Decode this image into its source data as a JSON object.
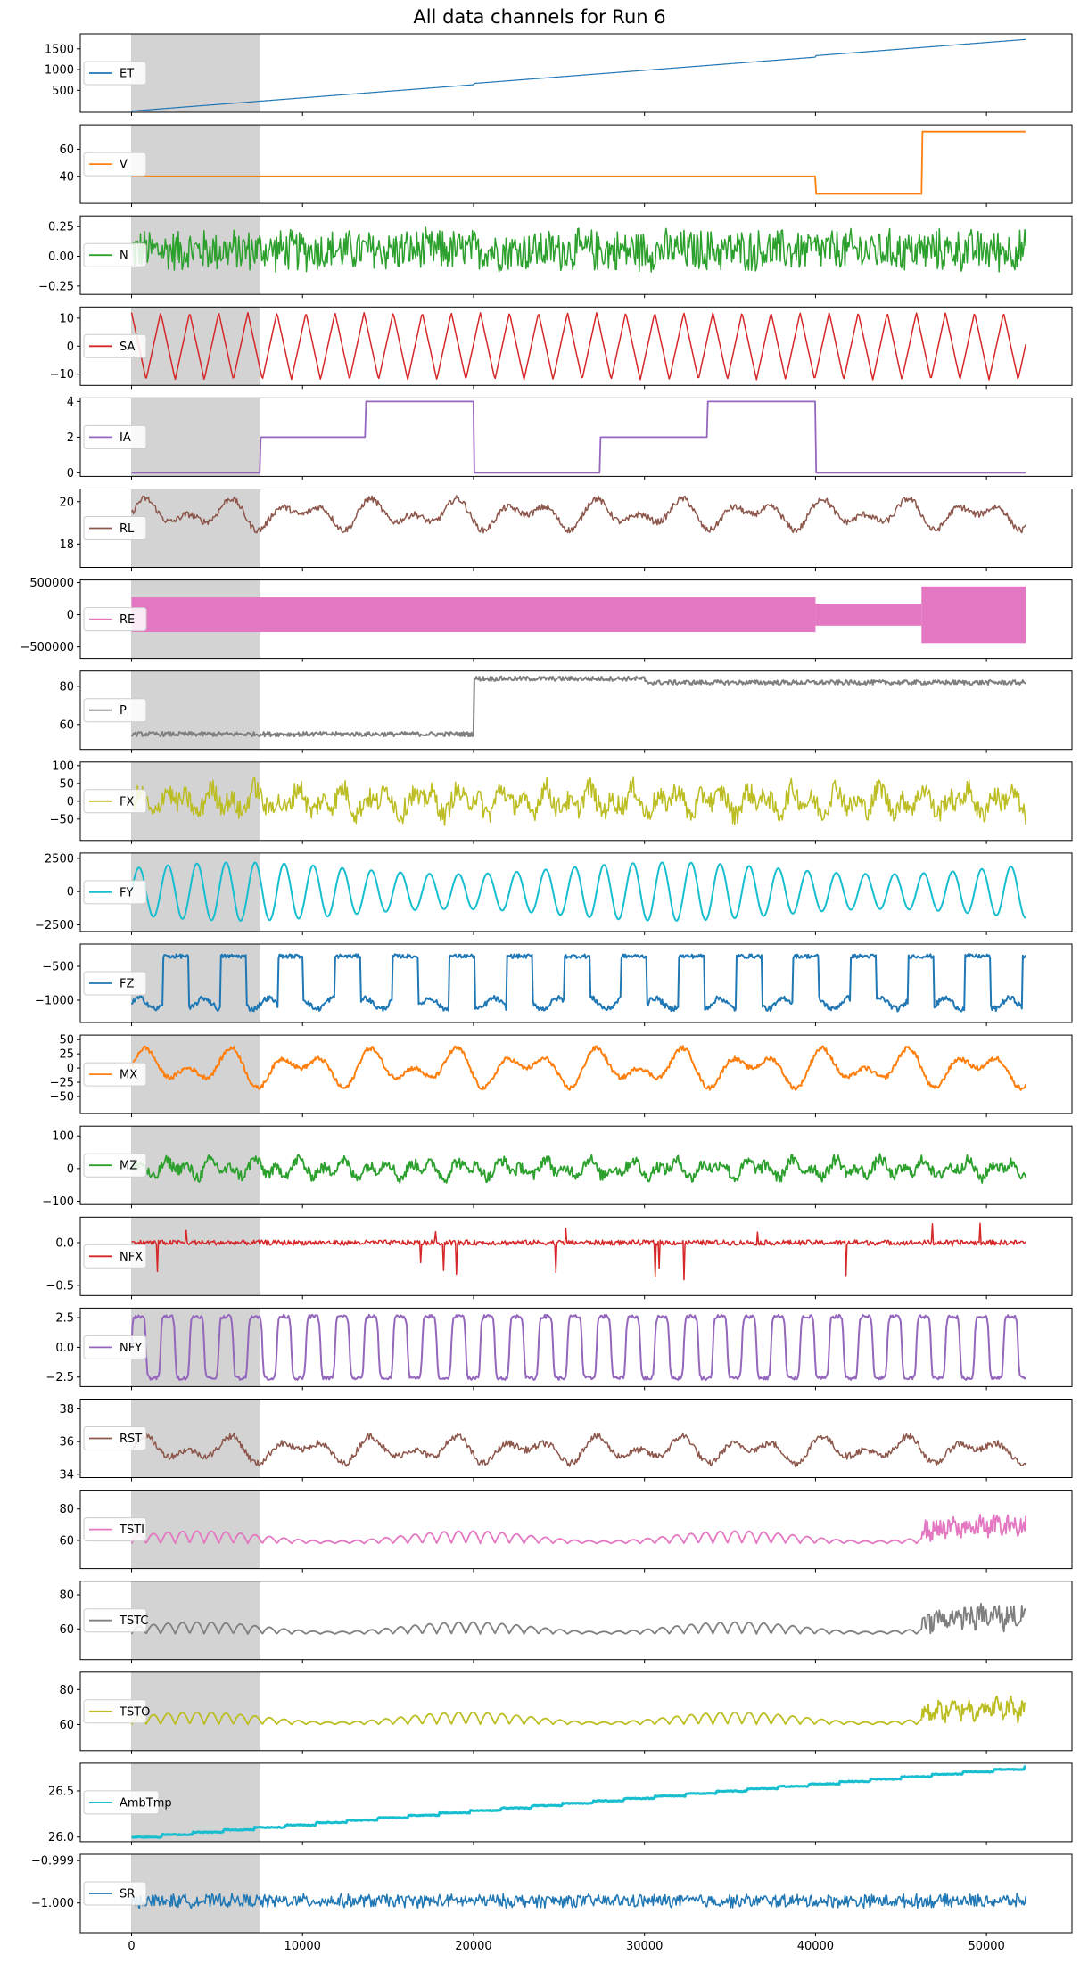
{
  "chart_data": {
    "type": "line",
    "title": "All data channels for Run 6",
    "x_domain": [
      -3000,
      55000
    ],
    "x_ticks": [
      0,
      10000,
      20000,
      30000,
      40000,
      50000
    ],
    "x_tick_labels": [
      "0",
      "10000",
      "20000",
      "30000",
      "40000",
      "50000"
    ],
    "shaded_region": [
      0,
      7500
    ],
    "x_end": 52300,
    "legend_placement": "center-left",
    "grid": false,
    "channels": [
      {
        "name": "ET",
        "color": "#1f77b4",
        "ylim": [
          -30,
          1860
        ],
        "yticks": [
          500,
          1000,
          1500
        ],
        "ytick_labels": [
          "500",
          "1000",
          "1500"
        ],
        "kind": "step_ramp",
        "lw": 1.2,
        "params": {
          "start": 0,
          "end": 1660,
          "jump_at": 20000,
          "jump": 30,
          "jump2_at": 40000,
          "jump2": 35
        }
      },
      {
        "name": "V",
        "color": "#ff7f0e",
        "ylim": [
          20,
          78
        ],
        "yticks": [
          40,
          60
        ],
        "ytick_labels": [
          "40",
          "60"
        ],
        "kind": "piecewise",
        "lw": 1.8,
        "params": {
          "segments": [
            [
              0,
              40000,
              40
            ],
            [
              40000,
              46200,
              27
            ],
            [
              46200,
              52300,
              73
            ]
          ]
        }
      },
      {
        "name": "N",
        "color": "#2ca02c",
        "ylim": [
          -0.32,
          0.34
        ],
        "yticks": [
          -0.25,
          0.0,
          0.25
        ],
        "ytick_labels": [
          "−0.25",
          "0.00",
          "0.25"
        ],
        "kind": "dense_noise",
        "lw": 1.5,
        "params": {
          "center": 0.05,
          "amp": 0.2
        }
      },
      {
        "name": "SA",
        "color": "#d62728",
        "ylim": [
          -14,
          14
        ],
        "yticks": [
          -10,
          0,
          10
        ],
        "ytick_labels": [
          "−10",
          "0",
          "10"
        ],
        "kind": "triangle",
        "lw": 1.5,
        "params": {
          "amp": 12,
          "period": 1700
        }
      },
      {
        "name": "IA",
        "color": "#9467bd",
        "ylim": [
          -0.2,
          4.2
        ],
        "yticks": [
          0,
          2,
          4
        ],
        "ytick_labels": [
          "0",
          "2",
          "4"
        ],
        "kind": "piecewise",
        "lw": 1.8,
        "params": {
          "segments": [
            [
              0,
              7500,
              0
            ],
            [
              7500,
              13700,
              2
            ],
            [
              13700,
              20000,
              4
            ],
            [
              20000,
              27400,
              0
            ],
            [
              27400,
              33700,
              2
            ],
            [
              33700,
              40000,
              4
            ],
            [
              40000,
              52300,
              0
            ]
          ]
        }
      },
      {
        "name": "RL",
        "color": "#8c564b",
        "ylim": [
          16.9,
          20.6
        ],
        "yticks": [
          18,
          20
        ],
        "ytick_labels": [
          "18",
          "20"
        ],
        "kind": "wavy",
        "lw": 1.5,
        "params": {
          "base": 19.4,
          "amp": 0.8,
          "noise": 0.15
        }
      },
      {
        "name": "RE",
        "color": "#e377c2",
        "ylim": [
          -680000,
          540000
        ],
        "yticks": [
          -500000,
          0,
          500000
        ],
        "ytick_labels": [
          "−500000",
          "0",
          "500000"
        ],
        "kind": "envelope",
        "lw": 1,
        "params": {
          "segments": [
            [
              0,
              40000,
              270000
            ],
            [
              40000,
              46200,
              170000
            ],
            [
              46200,
              52300,
              440000
            ]
          ]
        }
      },
      {
        "name": "P",
        "color": "#7f7f7f",
        "ylim": [
          47,
          88
        ],
        "yticks": [
          60,
          80
        ],
        "ytick_labels": [
          "60",
          "80"
        ],
        "kind": "piecewise_noise",
        "lw": 2,
        "params": {
          "segments": [
            [
              0,
              20000,
              55
            ],
            [
              20000,
              30000,
              84
            ],
            [
              30000,
              52300,
              82
            ]
          ],
          "noise": 1.2
        }
      },
      {
        "name": "FX",
        "color": "#bcbd22",
        "ylim": [
          -110,
          110
        ],
        "yticks": [
          -50,
          0,
          50,
          100
        ],
        "ytick_labels": [
          "−50",
          "0",
          "50",
          "100"
        ],
        "kind": "noisy_osc",
        "lw": 1.5,
        "params": {
          "amp": 40,
          "noise": 30
        }
      },
      {
        "name": "FY",
        "color": "#17becf",
        "ylim": [
          -3000,
          2900
        ],
        "yticks": [
          -2500,
          0,
          2500
        ],
        "ytick_labels": [
          "−2500",
          "0",
          "2500"
        ],
        "kind": "sine",
        "lw": 2,
        "params": {
          "amp": 2200,
          "period": 1700
        }
      },
      {
        "name": "FZ",
        "color": "#1f77b4",
        "ylim": [
          -1330,
          -170
        ],
        "yticks": [
          -1000,
          -500
        ],
        "ytick_labels": [
          "−1000",
          "−500"
        ],
        "kind": "blocky",
        "lw": 2,
        "params": {
          "low": -1050,
          "high": -350,
          "period": 3350
        }
      },
      {
        "name": "MX",
        "color": "#ff7f0e",
        "ylim": [
          -80,
          58
        ],
        "yticks": [
          -50,
          -25,
          0,
          25,
          50
        ],
        "ytick_labels": [
          "−50",
          "−25",
          "0",
          "25",
          "50"
        ],
        "kind": "wavy",
        "lw": 2,
        "params": {
          "base": 0,
          "amp": 38,
          "noise": 4
        }
      },
      {
        "name": "MZ",
        "color": "#2ca02c",
        "ylim": [
          -110,
          130
        ],
        "yticks": [
          -100,
          0,
          100
        ],
        "ytick_labels": [
          "−100",
          "0",
          "100"
        ],
        "kind": "noisy_osc",
        "lw": 1.8,
        "params": {
          "amp": 30,
          "noise": 18
        }
      },
      {
        "name": "NFX",
        "color": "#d62728",
        "ylim": [
          -0.62,
          0.3
        ],
        "yticks": [
          -0.5,
          0.0
        ],
        "ytick_labels": [
          "−0.5",
          "0.0"
        ],
        "kind": "spiky",
        "lw": 1.5,
        "params": {
          "noise": 0.03
        }
      },
      {
        "name": "NFY",
        "color": "#9467bd",
        "ylim": [
          -3.3,
          3.3
        ],
        "yticks": [
          -2.5,
          0.0,
          2.5
        ],
        "ytick_labels": [
          "−2.5",
          "0.0",
          "2.5"
        ],
        "kind": "square_wave",
        "lw": 2,
        "params": {
          "amp": 2.6,
          "period": 1700
        }
      },
      {
        "name": "RST",
        "color": "#8c564b",
        "ylim": [
          33.8,
          38.6
        ],
        "yticks": [
          34,
          36,
          38
        ],
        "ytick_labels": [
          "34",
          "36",
          "38"
        ],
        "kind": "wavy",
        "lw": 1.5,
        "params": {
          "base": 35.5,
          "amp": 0.9,
          "noise": 0.2
        }
      },
      {
        "name": "TSTI",
        "color": "#e377c2",
        "ylim": [
          42,
          92
        ],
        "yticks": [
          60,
          80
        ],
        "ytick_labels": [
          "60",
          "80"
        ],
        "kind": "temp",
        "lw": 1.8,
        "params": {
          "base": 58,
          "amp": 8,
          "rise_at": 46200,
          "rise": 12
        }
      },
      {
        "name": "TSTC",
        "color": "#7f7f7f",
        "ylim": [
          42,
          88
        ],
        "yticks": [
          60,
          80
        ],
        "ytick_labels": [
          "60",
          "80"
        ],
        "kind": "temp",
        "lw": 1.8,
        "params": {
          "base": 57,
          "amp": 7,
          "rise_at": 46200,
          "rise": 12
        }
      },
      {
        "name": "TSTO",
        "color": "#bcbd22",
        "ylim": [
          45,
          90
        ],
        "yticks": [
          60,
          80
        ],
        "ytick_labels": [
          "60",
          "80"
        ],
        "kind": "temp",
        "lw": 1.8,
        "params": {
          "base": 60,
          "amp": 7,
          "rise_at": 46200,
          "rise": 10
        }
      },
      {
        "name": "AmbTmp",
        "color": "#17becf",
        "ylim": [
          25.95,
          26.8
        ],
        "yticks": [
          26.0,
          26.5
        ],
        "ytick_labels": [
          "26.0",
          "26.5"
        ],
        "kind": "stair",
        "lw": 3,
        "params": {
          "start": 26.0,
          "end": 26.76
        }
      },
      {
        "name": "SR",
        "color": "#1f77b4",
        "ylim": [
          -1.0007,
          -0.99885
        ],
        "yticks": [
          -1.0,
          -0.999
        ],
        "ytick_labels": [
          "−1.000",
          "−0.999"
        ],
        "kind": "dense_noise",
        "lw": 1.5,
        "params": {
          "center": -0.99995,
          "amp": 0.00018
        }
      }
    ]
  }
}
